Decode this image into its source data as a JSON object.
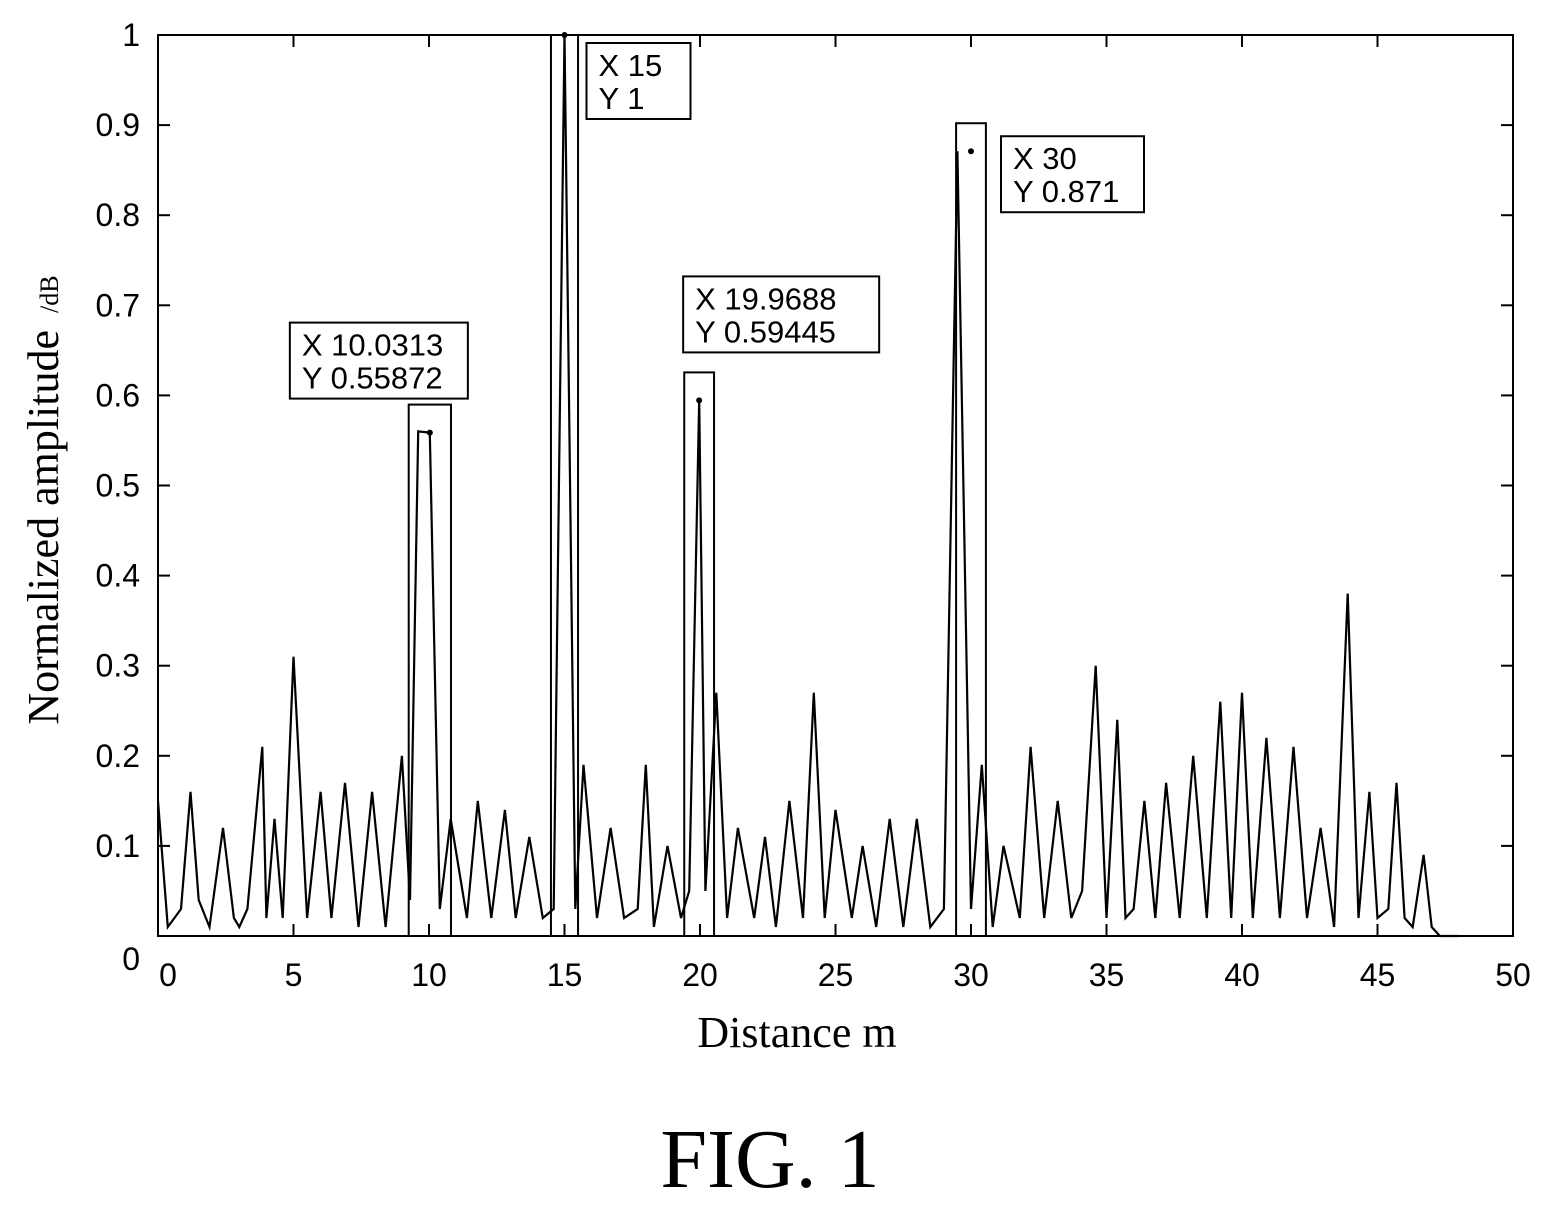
{
  "figure": {
    "caption": "FIG. 1"
  },
  "chart_data": {
    "type": "line",
    "title": "",
    "xlabel": "Distance m",
    "ylabel": "Normalized amplitude",
    "ylabel_unit": "/dB",
    "xlim": [
      0,
      50
    ],
    "ylim": [
      0,
      1
    ],
    "xticks": [
      0,
      5,
      10,
      15,
      20,
      25,
      30,
      35,
      40,
      45,
      50
    ],
    "yticks": [
      0,
      0.1,
      0.2,
      0.3,
      0.4,
      0.5,
      0.6,
      0.7,
      0.8,
      0.9,
      1
    ],
    "ytick_labels": [
      "0",
      "0.1",
      "0.2",
      "0.3",
      "0.4",
      "0.5",
      "0.6",
      "0.7",
      "0.8",
      "0.9",
      "1"
    ],
    "grid": false,
    "line_color": "#000000",
    "series": [
      {
        "x": [
          0,
          0.36,
          0.85,
          1.2,
          1.5,
          1.9,
          2.4,
          2.8,
          3.0,
          3.3,
          3.85,
          4.0,
          4.3,
          4.6,
          5.0,
          5.5,
          6.0,
          6.4,
          6.9,
          7.4,
          7.9,
          8.4,
          9.0,
          9.3,
          9.6,
          10.0313,
          10.4,
          10.8,
          11.4,
          11.8,
          12.3,
          12.8,
          13.2,
          13.7,
          14.2,
          14.6,
          15.0,
          15.4,
          15.7,
          16.2,
          16.7,
          17.2,
          17.7,
          18.0,
          18.3,
          18.8,
          19.3,
          19.6,
          19.9688,
          20.2,
          20.6,
          21.0,
          21.4,
          22.0,
          22.4,
          22.8,
          23.3,
          23.8,
          24.2,
          24.6,
          25.0,
          25.6,
          26.0,
          26.5,
          27.0,
          27.5,
          28.0,
          28.5,
          29.0,
          29.5,
          30.0,
          30.4,
          30.8,
          31.2,
          31.8,
          32.2,
          32.7,
          33.2,
          33.7,
          34.1,
          34.6,
          35.0,
          35.4,
          35.7,
          36.0,
          36.4,
          36.8,
          37.2,
          37.7,
          38.2,
          38.7,
          39.2,
          39.6,
          40.0,
          40.4,
          40.9,
          41.4,
          41.9,
          42.4,
          42.9,
          43.4,
          43.9,
          44.3,
          44.7,
          45.0,
          45.4,
          45.7,
          46.0,
          46.3,
          46.7,
          47.0,
          47.3,
          47.6,
          47.8,
          48.0
        ],
        "y": [
          0.15,
          0.01,
          0.03,
          0.16,
          0.04,
          0.01,
          0.12,
          0.02,
          0.01,
          0.03,
          0.21,
          0.02,
          0.13,
          0.02,
          0.31,
          0.02,
          0.16,
          0.02,
          0.17,
          0.01,
          0.16,
          0.01,
          0.2,
          0.04,
          0.56,
          0.55872,
          0.03,
          0.13,
          0.02,
          0.15,
          0.02,
          0.14,
          0.02,
          0.11,
          0.02,
          0.03,
          1.0,
          0.03,
          0.19,
          0.02,
          0.12,
          0.02,
          0.03,
          0.19,
          0.01,
          0.1,
          0.02,
          0.05,
          0.59445,
          0.05,
          0.27,
          0.02,
          0.12,
          0.02,
          0.11,
          0.01,
          0.15,
          0.02,
          0.27,
          0.02,
          0.14,
          0.02,
          0.1,
          0.01,
          0.13,
          0.01,
          0.13,
          0.01,
          0.03,
          0.871,
          0.03,
          0.19,
          0.01,
          0.1,
          0.02,
          0.21,
          0.02,
          0.15,
          0.02,
          0.05,
          0.3,
          0.02,
          0.24,
          0.02,
          0.03,
          0.15,
          0.02,
          0.17,
          0.02,
          0.2,
          0.02,
          0.26,
          0.02,
          0.27,
          0.02,
          0.22,
          0.02,
          0.21,
          0.02,
          0.12,
          0.01,
          0.38,
          0.02,
          0.16,
          0.02,
          0.03,
          0.17,
          0.02,
          0.01,
          0.09,
          0.01,
          0.0,
          0.0,
          0.0,
          0.0
        ]
      }
    ],
    "annotations": [
      {
        "x": 10.0313,
        "y": 0.55872,
        "label_x": "X 10.0313",
        "label_y": "Y 0.55872"
      },
      {
        "x": 15,
        "y": 1,
        "label_x": "X 15",
        "label_y": "Y 1"
      },
      {
        "x": 19.9688,
        "y": 0.59445,
        "label_x": "X 19.9688",
        "label_y": "Y 0.59445"
      },
      {
        "x": 30,
        "y": 0.871,
        "label_x": "X 30",
        "label_y": "Y 0.871"
      }
    ]
  }
}
